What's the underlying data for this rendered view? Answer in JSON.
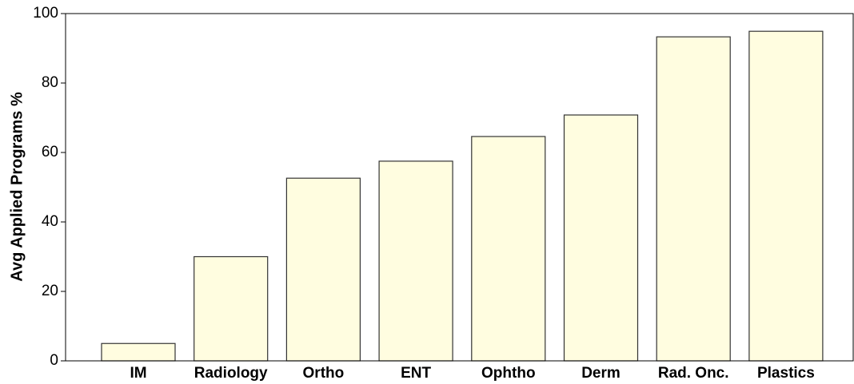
{
  "chart_data": {
    "type": "bar",
    "y_label": "Avg Applied Programs %",
    "categories": [
      "IM",
      "Radiology",
      "Ortho",
      "ENT",
      "Ophtho",
      "Derm",
      "Rad. Onc.",
      "Plastics"
    ],
    "values": [
      5,
      30,
      52.6,
      57.5,
      64.6,
      70.8,
      93.3,
      94.9
    ],
    "color": "#fffde0",
    "ylim": [
      0,
      100
    ],
    "yticks": [
      0,
      20,
      40,
      60,
      80,
      100
    ],
    "grid": false
  }
}
